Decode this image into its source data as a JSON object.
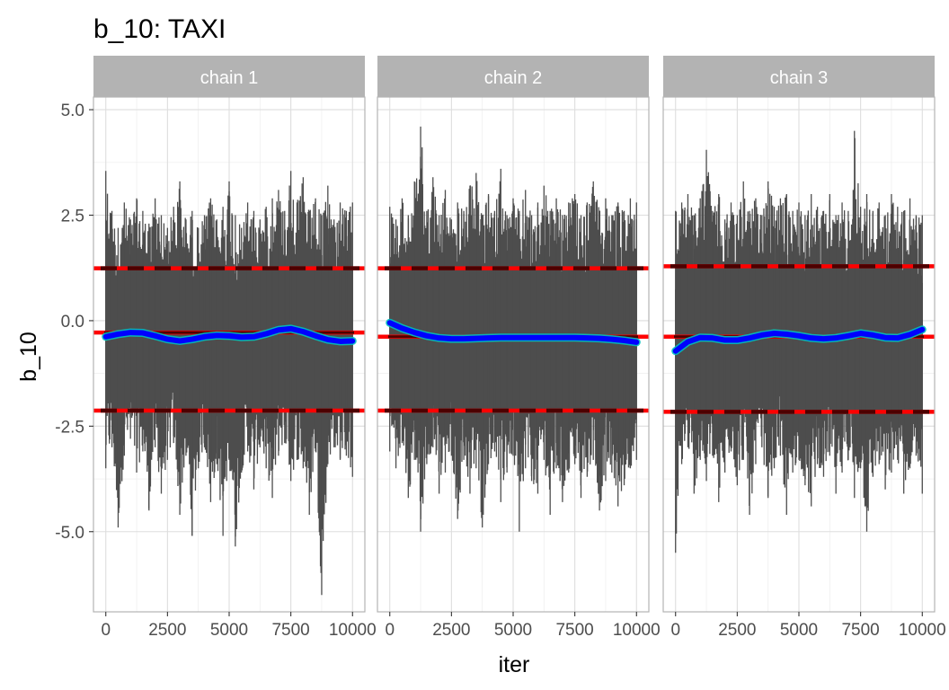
{
  "chart_data": {
    "type": "line",
    "title": "b_10: TAXI",
    "xlabel": "iter",
    "ylabel": "b_10",
    "xlim": [
      -500,
      10500
    ],
    "ylim": [
      -6.9,
      5.3
    ],
    "x_ticks": [
      0,
      2500,
      5000,
      7500,
      10000
    ],
    "x_tick_labels": [
      "0",
      "2500",
      "5000",
      "7500",
      "10000"
    ],
    "y_ticks": [
      5.0,
      2.5,
      0.0,
      -2.5,
      -5.0
    ],
    "y_tick_labels": [
      "5.0",
      "2.5",
      "0.0",
      "-2.5",
      "-5.0"
    ],
    "grid": true,
    "colors": {
      "trace": "#4d4d4d",
      "smooth": "#0000ff",
      "smooth_band": "#00c0c0",
      "interval": "#ff0000",
      "reference": "#4d0000",
      "strip_bg": "#b3b3b3",
      "grid": "#dedede"
    },
    "panels": [
      {
        "label": "chain 1",
        "mean": -0.28,
        "ci_low": -2.13,
        "ci_high": 1.24,
        "trace_x": [
          0,
          250,
          500,
          750,
          1000,
          1250,
          1500,
          1750,
          2000,
          2250,
          2500,
          2750,
          3000,
          3250,
          3500,
          3750,
          4000,
          4250,
          4500,
          4750,
          5000,
          5250,
          5500,
          5750,
          6000,
          6250,
          6500,
          6750,
          7000,
          7250,
          7500,
          7750,
          8000,
          8250,
          8500,
          8750,
          9000,
          9250,
          9500,
          9750,
          10000
        ],
        "trace_high": [
          3.55,
          2.6,
          2.2,
          2.8,
          2.4,
          2.9,
          2.6,
          2.3,
          2.9,
          2.5,
          2.2,
          2.7,
          3.3,
          2.4,
          2.6,
          2.2,
          2.5,
          2.9,
          2.4,
          2.7,
          3.3,
          2.5,
          2.2,
          2.8,
          2.6,
          2.4,
          2.7,
          2.9,
          3.1,
          2.6,
          3.55,
          2.8,
          3.4,
          2.6,
          2.9,
          2.5,
          3.2,
          2.4,
          2.8,
          2.6,
          2.8
        ],
        "trace_low": [
          -3.5,
          -3.0,
          -4.9,
          -3.2,
          -2.8,
          -3.6,
          -3.1,
          -4.5,
          -3.0,
          -4.1,
          -3.3,
          -2.9,
          -4.6,
          -3.2,
          -5.1,
          -3.5,
          -3.0,
          -4.3,
          -3.4,
          -5.1,
          -3.3,
          -5.35,
          -3.6,
          -3.1,
          -4.0,
          -3.0,
          -3.5,
          -4.2,
          -3.2,
          -2.9,
          -3.8,
          -3.3,
          -3.5,
          -4.6,
          -3.1,
          -6.5,
          -3.4,
          -3.0,
          -3.3,
          -3.2,
          -3.7
        ],
        "smooth_x": [
          0,
          500,
          1000,
          1500,
          2000,
          2500,
          3000,
          3500,
          4000,
          4500,
          5000,
          5500,
          6000,
          6500,
          7000,
          7500,
          8000,
          8500,
          9000,
          9500,
          10000
        ],
        "smooth_y": [
          -0.38,
          -0.32,
          -0.28,
          -0.29,
          -0.36,
          -0.44,
          -0.48,
          -0.44,
          -0.38,
          -0.35,
          -0.36,
          -0.39,
          -0.38,
          -0.31,
          -0.22,
          -0.19,
          -0.26,
          -0.36,
          -0.45,
          -0.49,
          -0.48
        ]
      },
      {
        "label": "chain 2",
        "mean": -0.38,
        "ci_low": -2.13,
        "ci_high": 1.24,
        "trace_x": [
          0,
          250,
          500,
          750,
          1000,
          1250,
          1500,
          1750,
          2000,
          2250,
          2500,
          2750,
          3000,
          3250,
          3500,
          3750,
          4000,
          4250,
          4500,
          4750,
          5000,
          5250,
          5500,
          5750,
          6000,
          6250,
          6500,
          6750,
          7000,
          7250,
          7500,
          7750,
          8000,
          8250,
          8500,
          8750,
          9000,
          9250,
          9500,
          9750,
          10000
        ],
        "trace_high": [
          2.7,
          2.4,
          2.9,
          2.5,
          3.3,
          4.6,
          2.6,
          3.4,
          2.5,
          3.1,
          2.4,
          2.8,
          2.6,
          3.2,
          3.5,
          2.5,
          3.0,
          2.6,
          3.6,
          2.5,
          2.9,
          2.6,
          3.1,
          2.5,
          2.8,
          3.2,
          2.6,
          2.9,
          2.5,
          2.8,
          3.0,
          2.5,
          2.8,
          3.3,
          2.6,
          2.9,
          2.5,
          2.8,
          2.6,
          2.9,
          2.8
        ],
        "trace_low": [
          -3.1,
          -3.5,
          -2.9,
          -4.2,
          -3.3,
          -5.0,
          -3.4,
          -3.0,
          -4.1,
          -3.6,
          -3.2,
          -4.7,
          -3.3,
          -4.1,
          -3.5,
          -4.9,
          -3.4,
          -3.1,
          -4.3,
          -3.6,
          -3.2,
          -5.0,
          -3.5,
          -3.8,
          -4.1,
          -3.3,
          -4.6,
          -3.5,
          -4.3,
          -3.6,
          -3.4,
          -4.2,
          -3.7,
          -3.3,
          -4.5,
          -3.8,
          -3.6,
          -4.4,
          -3.9,
          -3.5,
          -3.3
        ],
        "smooth_x": [
          0,
          500,
          1000,
          1500,
          2000,
          2500,
          3000,
          3500,
          4000,
          4500,
          5000,
          5500,
          6000,
          6500,
          7000,
          7500,
          8000,
          8500,
          9000,
          9500,
          10000
        ],
        "smooth_y": [
          -0.05,
          -0.18,
          -0.28,
          -0.36,
          -0.41,
          -0.43,
          -0.43,
          -0.42,
          -0.41,
          -0.4,
          -0.4,
          -0.4,
          -0.4,
          -0.4,
          -0.4,
          -0.4,
          -0.41,
          -0.42,
          -0.44,
          -0.47,
          -0.51
        ]
      },
      {
        "label": "chain 3",
        "mean": -0.38,
        "ci_low": -2.16,
        "ci_high": 1.29,
        "trace_x": [
          0,
          250,
          500,
          750,
          1000,
          1250,
          1500,
          1750,
          2000,
          2250,
          2500,
          2750,
          3000,
          3250,
          3500,
          3750,
          4000,
          4250,
          4500,
          4750,
          5000,
          5250,
          5500,
          5750,
          6000,
          6250,
          6500,
          6750,
          7000,
          7250,
          7500,
          7750,
          8000,
          8250,
          8500,
          8750,
          9000,
          9250,
          9500,
          9750,
          10000
        ],
        "trace_high": [
          2.6,
          2.8,
          3.0,
          2.5,
          2.9,
          4.05,
          2.6,
          3.0,
          2.4,
          2.8,
          2.5,
          3.3,
          2.6,
          2.9,
          2.5,
          3.3,
          2.7,
          2.9,
          3.0,
          2.6,
          2.8,
          2.5,
          3.0,
          2.7,
          2.6,
          3.0,
          2.5,
          2.8,
          2.6,
          4.5,
          2.7,
          3.0,
          2.6,
          2.8,
          2.5,
          3.0,
          2.7,
          2.6,
          2.9,
          2.5,
          2.5
        ],
        "trace_low": [
          -5.5,
          -3.4,
          -3.0,
          -4.1,
          -3.3,
          -3.8,
          -3.2,
          -4.3,
          -3.6,
          -3.1,
          -3.9,
          -3.3,
          -4.6,
          -3.4,
          -3.0,
          -4.2,
          -3.5,
          -3.2,
          -4.6,
          -3.6,
          -3.3,
          -3.9,
          -4.4,
          -3.4,
          -3.7,
          -3.2,
          -4.1,
          -3.6,
          -3.3,
          -4.2,
          -3.5,
          -5.0,
          -3.7,
          -3.4,
          -4.0,
          -3.6,
          -3.3,
          -4.1,
          -3.5,
          -3.2,
          -4.1
        ],
        "smooth_x": [
          0,
          500,
          1000,
          1500,
          2000,
          2500,
          3000,
          3500,
          4000,
          4500,
          5000,
          5500,
          6000,
          6500,
          7000,
          7500,
          8000,
          8500,
          9000,
          9500,
          10000
        ],
        "smooth_y": [
          -0.72,
          -0.5,
          -0.4,
          -0.41,
          -0.46,
          -0.46,
          -0.41,
          -0.34,
          -0.3,
          -0.32,
          -0.36,
          -0.41,
          -0.43,
          -0.41,
          -0.36,
          -0.3,
          -0.34,
          -0.4,
          -0.41,
          -0.33,
          -0.21
        ]
      }
    ]
  }
}
